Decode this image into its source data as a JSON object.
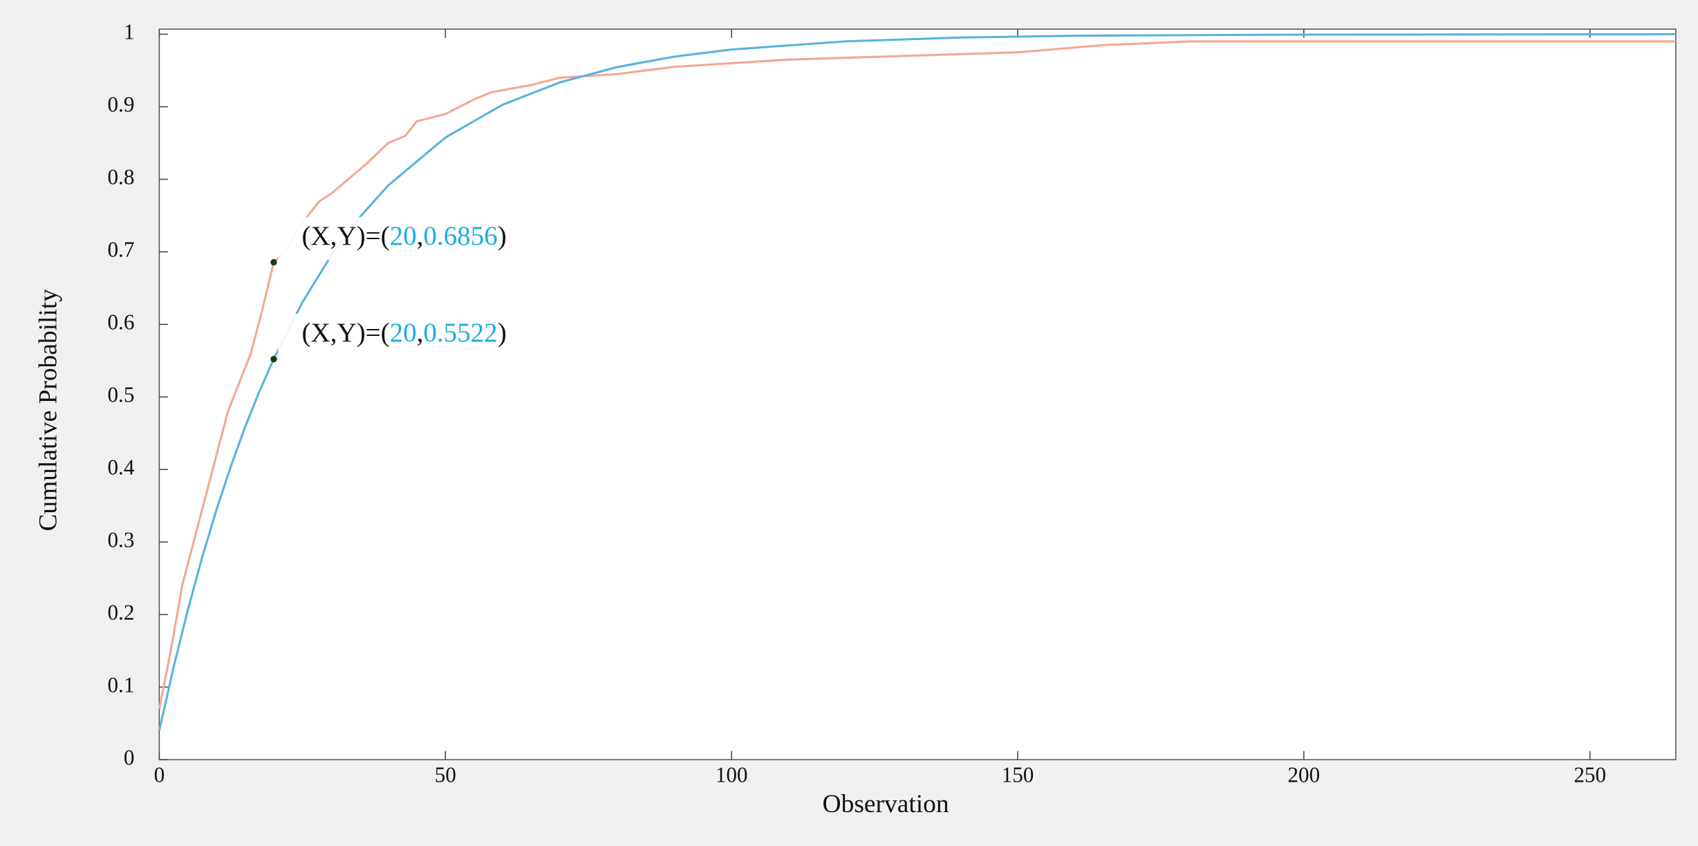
{
  "chart_data": {
    "type": "line",
    "x_label": "Observation",
    "y_label": "Cumulative Probability",
    "xlim": [
      0,
      265
    ],
    "ylim": [
      0,
      1.007
    ],
    "xticks": [
      0,
      50,
      100,
      150,
      200,
      250
    ],
    "yticks": [
      0,
      0.1,
      0.2,
      0.3,
      0.4,
      0.5,
      0.6,
      0.7,
      0.8,
      0.9,
      1
    ],
    "series": [
      {
        "color": "#f4a892",
        "x": [
          0,
          2,
          4,
          6,
          8,
          10,
          12,
          14,
          16,
          18,
          20,
          22,
          25,
          28,
          30,
          33,
          36,
          40,
          43,
          45,
          50,
          55,
          58,
          65,
          70,
          80,
          90,
          100,
          110,
          130,
          150,
          165,
          180,
          265
        ],
        "values": [
          0.07,
          0.15,
          0.24,
          0.3,
          0.36,
          0.42,
          0.48,
          0.52,
          0.56,
          0.62,
          0.6856,
          0.7,
          0.74,
          0.77,
          0.78,
          0.8,
          0.82,
          0.85,
          0.86,
          0.88,
          0.89,
          0.91,
          0.92,
          0.93,
          0.94,
          0.945,
          0.955,
          0.96,
          0.965,
          0.97,
          0.975,
          0.985,
          0.99,
          0.99
        ]
      },
      {
        "color": "#5ab3dc",
        "x": [
          0,
          2.5,
          5,
          7.5,
          10,
          12.5,
          15,
          17.5,
          20,
          25,
          30,
          35,
          40,
          50,
          60,
          70,
          80,
          90,
          100,
          120,
          140,
          160,
          200,
          265
        ],
        "values": [
          0.04,
          0.1274,
          0.2067,
          0.279,
          0.3446,
          0.4042,
          0.4585,
          0.5077,
          0.5522,
          0.6303,
          0.6945,
          0.7476,
          0.7915,
          0.8576,
          0.9028,
          0.9336,
          0.9547,
          0.9691,
          0.9789,
          0.9902,
          0.9954,
          0.9979,
          0.9995,
          1.0
        ]
      }
    ],
    "annotations": [
      {
        "x": 20,
        "y": 0.6856,
        "prefix": "(X,Y)=(",
        "separator": ",",
        "suffix": ")",
        "color": "#1aaee0"
      },
      {
        "x": 20,
        "y": 0.5522,
        "prefix": "(X,Y)=(",
        "separator": ",",
        "suffix": ")",
        "color": "#1aaee0"
      }
    ]
  }
}
